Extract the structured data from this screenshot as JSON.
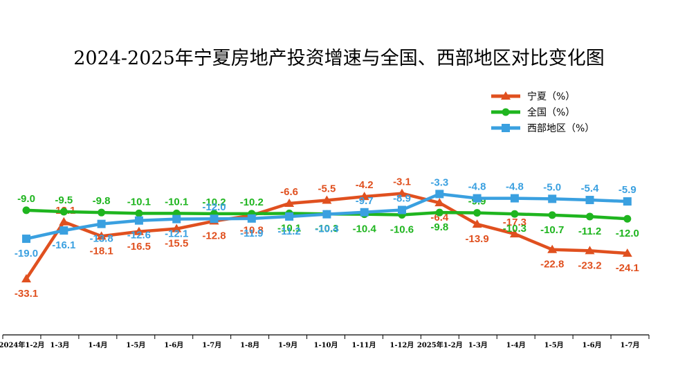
{
  "chart_data": {
    "type": "line",
    "title": "2024-2025年宁夏房地产投资增速与全国、西部地区对比变化图",
    "categories": [
      "2024年1-2月",
      "1-3月",
      "1-4月",
      "1-5月",
      "1-6月",
      "1-7月",
      "1-8月",
      "1-9月",
      "1-10月",
      "1-11月",
      "1-12月",
      "2025年1-2月",
      "1-3月",
      "1-4月",
      "1-5月",
      "1-6月",
      "1-7月"
    ],
    "series": [
      {
        "name": "宁夏（%）",
        "color": "#e0501f",
        "marker": "triangle",
        "values": [
          -33.1,
          -13.1,
          -18.1,
          -16.5,
          -15.5,
          -12.8,
          -10.8,
          -6.6,
          -5.5,
          -4.2,
          -3.1,
          -6.4,
          -13.9,
          -17.3,
          -22.8,
          -23.2,
          -24.1
        ],
        "labels": [
          "-33.1",
          "-13.1",
          "-18.1",
          "-16.5",
          "-15.5",
          "-12.8",
          "-10.8",
          "-6.6",
          "-5.5",
          "-4.2",
          "-3.1",
          "-6.4",
          "-13.9",
          "-17.3",
          "-22.8",
          "-23.2",
          "-24.1"
        ]
      },
      {
        "name": "全国（%）",
        "color": "#1fb51f",
        "marker": "circle",
        "values": [
          -9.0,
          -9.5,
          -9.8,
          -10.1,
          -10.1,
          -10.2,
          -10.2,
          -10.1,
          -10.3,
          -10.4,
          -10.6,
          -9.8,
          -9.9,
          -10.3,
          -10.7,
          -11.2,
          -12.0
        ],
        "labels": [
          "-9.0",
          "-9.5",
          "-9.8",
          "-10.1",
          "-10.1",
          "-10.2",
          "-10.2",
          "-10.1",
          "-10.3",
          "-10.4",
          "-10.6",
          "-9.8",
          "-9.9",
          "-10.3",
          "-10.7",
          "-11.2",
          "-12.0"
        ]
      },
      {
        "name": "西部地区（%）",
        "color": "#3aa0e0",
        "marker": "square",
        "values": [
          -19.0,
          -16.1,
          -13.8,
          -12.6,
          -12.1,
          -12.0,
          -11.9,
          -11.2,
          -10.4,
          -9.7,
          -8.9,
          -3.3,
          -4.8,
          -4.8,
          -5.0,
          -5.4,
          -5.9
        ],
        "labels": [
          "-19.0",
          "-16.1",
          "-13.8",
          "-12.6",
          "-12.1",
          "-12.0",
          "-11.9",
          "-11.2",
          "-10.4",
          "-9.7",
          "-8.9",
          "-3.3",
          "-4.8",
          "-4.8",
          "-5.0",
          "-5.4",
          "-5.9"
        ]
      }
    ],
    "legend_position": "top-right",
    "grid": false
  }
}
